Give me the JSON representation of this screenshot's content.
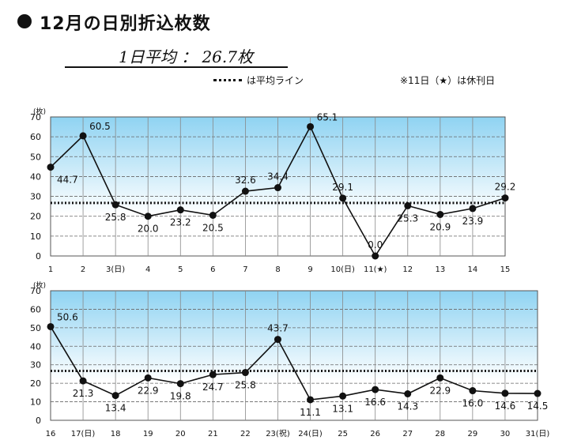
{
  "header": {
    "title": "12月の日別折込枚数",
    "average_text": "1日平均 ： 26.7枚",
    "legend_text": "は平均ライン",
    "note": "※11日（★）は休刊日"
  },
  "colors": {
    "plot_top": "#8fd3f2",
    "plot_bottom": "#ffffff",
    "line": "#111111"
  },
  "chart_data": [
    {
      "type": "line",
      "ylabel": "(枚)",
      "ylim": [
        0,
        70
      ],
      "yticks": [
        "0",
        "10",
        "20",
        "30",
        "40",
        "50",
        "60",
        "70"
      ],
      "average": 26.7,
      "categories": [
        "1",
        "2",
        "3(日)",
        "4",
        "5",
        "6",
        "7",
        "8",
        "9",
        "10(日)",
        "11(★)",
        "12",
        "13",
        "14",
        "15"
      ],
      "values": [
        44.7,
        60.5,
        25.8,
        20.0,
        23.2,
        20.5,
        32.6,
        34.4,
        65.1,
        29.1,
        0.0,
        25.3,
        20.9,
        23.9,
        29.2
      ],
      "labels": [
        "44.7",
        "60.5",
        "25.8",
        "20.0",
        "23.2",
        "20.5",
        "32.6",
        "34.4",
        "65.1",
        "29.1",
        "0.0",
        "25.3",
        "20.9",
        "23.9",
        "29.2"
      ],
      "label_pos": [
        "below-right",
        "above-right",
        "below",
        "below",
        "below",
        "below",
        "above",
        "above",
        "above-right",
        "above",
        "above",
        "below",
        "below",
        "below",
        "above"
      ]
    },
    {
      "type": "line",
      "ylabel": "(枚)",
      "ylim": [
        0,
        70
      ],
      "yticks": [
        "0",
        "10",
        "20",
        "30",
        "40",
        "50",
        "60",
        "70"
      ],
      "average": 26.7,
      "categories": [
        "16",
        "17(日)",
        "18",
        "19",
        "20",
        "21",
        "22",
        "23(祝)",
        "24(日)",
        "25",
        "26",
        "27",
        "28",
        "29",
        "30",
        "31(日)"
      ],
      "values": [
        50.6,
        21.3,
        13.4,
        22.9,
        19.8,
        24.7,
        25.8,
        43.7,
        11.1,
        13.1,
        16.6,
        14.3,
        22.9,
        16.0,
        14.6,
        14.5
      ],
      "labels": [
        "50.6",
        "21.3",
        "13.4",
        "22.9",
        "19.8",
        "24.7",
        "25.8",
        "43.7",
        "11.1",
        "13.1",
        "16.6",
        "14.3",
        "22.9",
        "16.0",
        "14.6",
        "14.5"
      ],
      "label_pos": [
        "above-right",
        "below",
        "below",
        "below",
        "below",
        "below",
        "below",
        "above",
        "below",
        "below",
        "below",
        "below",
        "below",
        "below",
        "below",
        "below"
      ]
    }
  ]
}
